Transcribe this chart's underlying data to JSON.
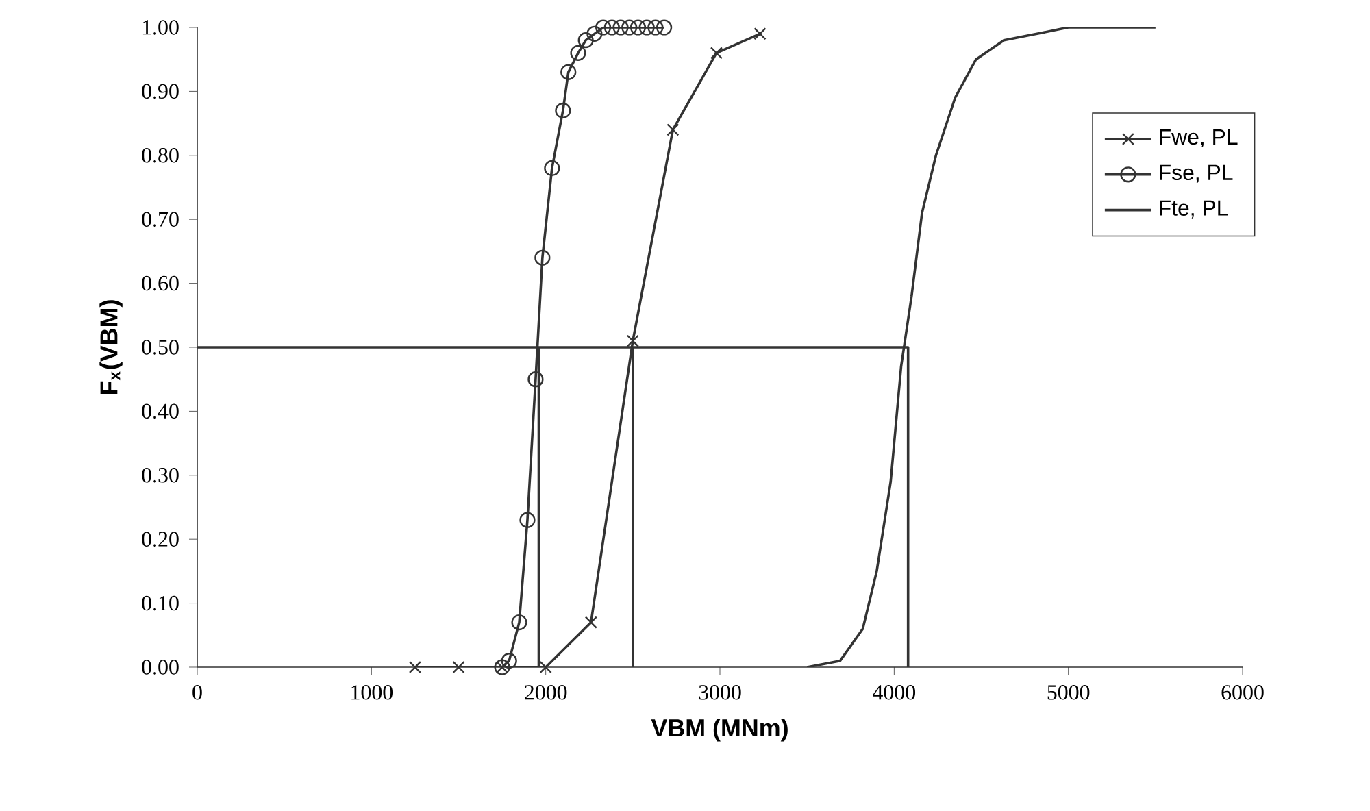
{
  "chart_data": {
    "type": "line",
    "xlabel": "VBM (MNm)",
    "ylabel": "F$_{x}$(VBM)",
    "xlim": [
      0,
      6000
    ],
    "ylim": [
      0,
      1
    ],
    "xticks": [
      0,
      1000,
      2000,
      3000,
      4000,
      5000,
      6000
    ],
    "yticks": [
      {
        "value": 0,
        "label": "0.00"
      },
      {
        "value": 0.1,
        "label": "0.10"
      },
      {
        "value": 0.2,
        "label": "0.20"
      },
      {
        "value": 0.3,
        "label": "0.30"
      },
      {
        "value": 0.4,
        "label": "0.40"
      },
      {
        "value": 0.5,
        "label": "0.50"
      },
      {
        "value": 0.6,
        "label": "0.60"
      },
      {
        "value": 0.7,
        "label": "0.70"
      },
      {
        "value": 0.8,
        "label": "0.80"
      },
      {
        "value": 0.9,
        "label": "0.90"
      },
      {
        "value": 1,
        "label": "1.00"
      }
    ],
    "legend": "top right",
    "grid": false,
    "line_style": "solid",
    "series": [
      {
        "name": "Fwe, PL",
        "color": "#333333",
        "marker": "cross",
        "x": [
          1250,
          1500,
          1750,
          2000,
          2260,
          2500,
          2730,
          2980,
          3230
        ],
        "values": [
          0,
          0,
          0,
          0,
          0.07,
          0.51,
          0.84,
          0.96,
          0.99
        ]
      },
      {
        "name": "Fse, PL",
        "color": "#333333",
        "marker": "circle",
        "x": [
          1750,
          1790,
          1848,
          1895,
          1942,
          1981,
          2036,
          2099,
          2130,
          2186,
          2230,
          2280,
          2330,
          2380,
          2430,
          2480,
          2530,
          2580,
          2630,
          2680
        ],
        "values": [
          0,
          0.01,
          0.07,
          0.23,
          0.45,
          0.64,
          0.78,
          0.87,
          0.93,
          0.96,
          0.98,
          0.99,
          1,
          1,
          1,
          1,
          1,
          1,
          1,
          1
        ]
      },
      {
        "name": "Fte, PL",
        "color": "#333333",
        "marker": "none",
        "x": [
          3500,
          3690,
          3820,
          3900,
          3980,
          4040,
          4100,
          4160,
          4240,
          4350,
          4470,
          4630,
          4820,
          5000,
          5500
        ],
        "values": [
          0,
          0.01,
          0.06,
          0.15,
          0.29,
          0.47,
          0.58,
          0.71,
          0.8,
          0.89,
          0.95,
          0.98,
          0.99,
          1,
          1
        ]
      },
      {
        "color": "#333333",
        "marker": "none",
        "x": [
          0,
          4080,
          4080
        ],
        "values": [
          0.5,
          0.5,
          0
        ]
      },
      {
        "color": "#333333",
        "marker": "none",
        "x": [
          1960,
          1960
        ],
        "values": [
          0,
          0.5
        ]
      },
      {
        "color": "#333333",
        "marker": "none",
        "x": [
          2500,
          2500
        ],
        "values": [
          0,
          0.5
        ]
      }
    ]
  }
}
